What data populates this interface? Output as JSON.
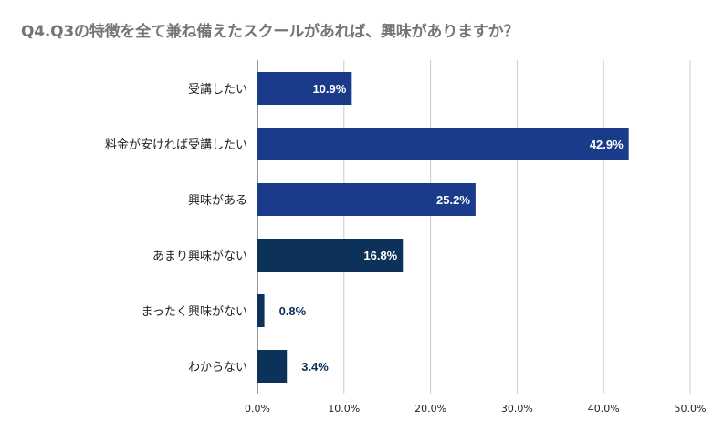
{
  "chart_data": {
    "type": "bar",
    "orientation": "horizontal",
    "title": "Q4.Q3の特徴を全て兼ね備えたスクールがあれば、興味がありますか？",
    "categories": [
      "受講したい",
      "料金が安ければ受講したい",
      "興味がある",
      "あまり興味がない",
      "まったく興味がない",
      "わからない"
    ],
    "values": [
      10.9,
      42.9,
      25.2,
      16.8,
      0.8,
      3.4
    ],
    "data_labels": [
      "10.9%",
      "42.9%",
      "25.2%",
      "16.8%",
      "0.8%",
      "3.4%"
    ],
    "bar_colors": [
      "#1a3a8a",
      "#1a3a8a",
      "#1a3a8a",
      "#0d3259",
      "#0d3259",
      "#0d3259"
    ],
    "xlim": [
      0,
      50
    ],
    "xticks": [
      0,
      10,
      20,
      30,
      40,
      50
    ],
    "xtick_labels": [
      "0.0%",
      "10.0%",
      "20.0%",
      "30.0%",
      "40.0%",
      "50.0%"
    ],
    "xlabel": "",
    "ylabel": "",
    "grid": true,
    "label_color_inside": "#ffffff",
    "label_color_outside": "#0d3259",
    "title_color": "#757575",
    "gridline_color": "#cccccc"
  }
}
